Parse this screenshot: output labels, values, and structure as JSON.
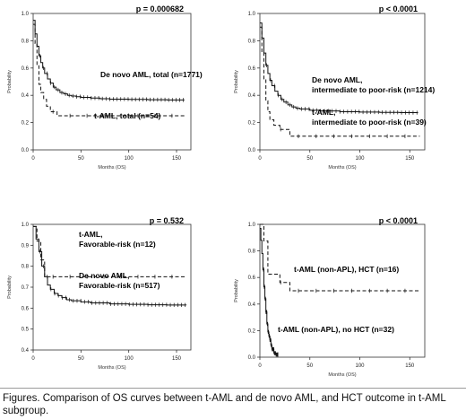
{
  "caption": "Figures. Comparison of OS curves between t-AML and de novo AML, and HCT outcome in t-AML subgroup.",
  "chart_data": [
    {
      "type": "line",
      "title": "",
      "p_value": "p = 0.000682",
      "xlabel": "Months (OS)",
      "ylabel": "Probability",
      "xlim": [
        0,
        165
      ],
      "ylim": [
        0,
        1.0
      ],
      "xticks": [
        "0",
        "50",
        "100",
        "150"
      ],
      "yticks": [
        "0.0",
        "0.2",
        "0.4",
        "0.6",
        "0.8",
        "1.0"
      ],
      "series": [
        {
          "style": "solid",
          "label_lines": [
            "De novo AML, total (n=1771)"
          ],
          "x": [
            0,
            2,
            4,
            6,
            8,
            10,
            12,
            15,
            18,
            21,
            24,
            28,
            32,
            36,
            40,
            45,
            50,
            60,
            70,
            80,
            100,
            120,
            140,
            158
          ],
          "y": [
            0.95,
            0.85,
            0.76,
            0.69,
            0.64,
            0.6,
            0.56,
            0.52,
            0.49,
            0.46,
            0.44,
            0.42,
            0.41,
            0.4,
            0.395,
            0.39,
            0.385,
            0.38,
            0.375,
            0.372,
            0.37,
            0.368,
            0.366,
            0.365
          ]
        },
        {
          "style": "dashed",
          "label_lines": [
            "t-AML, total (n=54)"
          ],
          "x": [
            0,
            2,
            4,
            6,
            8,
            11,
            14,
            18,
            25,
            160
          ],
          "y": [
            0.92,
            0.78,
            0.62,
            0.48,
            0.42,
            0.37,
            0.32,
            0.28,
            0.25,
            0.25
          ]
        }
      ]
    },
    {
      "type": "line",
      "title": "",
      "p_value": "p < 0.0001",
      "xlabel": "Months (OS)",
      "ylabel": "Probability",
      "xlim": [
        0,
        165
      ],
      "ylim": [
        0,
        1.0
      ],
      "xticks": [
        "0",
        "50",
        "100",
        "150"
      ],
      "yticks": [
        "0.0",
        "0.2",
        "0.4",
        "0.6",
        "0.8",
        "1.0"
      ],
      "series": [
        {
          "style": "solid",
          "label_lines": [
            "De novo AML,",
            "intermediate to poor-risk (n=1214)"
          ],
          "x": [
            0,
            2,
            4,
            6,
            8,
            10,
            12,
            15,
            18,
            21,
            24,
            28,
            32,
            36,
            40,
            50,
            60,
            80,
            100,
            120,
            140,
            158
          ],
          "y": [
            0.93,
            0.82,
            0.71,
            0.62,
            0.56,
            0.51,
            0.47,
            0.43,
            0.4,
            0.37,
            0.35,
            0.33,
            0.315,
            0.305,
            0.3,
            0.29,
            0.285,
            0.28,
            0.277,
            0.275,
            0.273,
            0.272
          ]
        },
        {
          "style": "dashed",
          "label_lines": [
            "t-AML,",
            "intermediate to poor-risk (n=39)"
          ],
          "x": [
            0,
            2,
            4,
            6,
            8,
            10,
            14,
            20,
            30,
            160
          ],
          "y": [
            0.9,
            0.72,
            0.52,
            0.36,
            0.28,
            0.22,
            0.18,
            0.15,
            0.1,
            0.1
          ]
        }
      ]
    },
    {
      "type": "line",
      "title": "",
      "p_value": "p = 0.532",
      "xlabel": "Months (OS)",
      "ylabel": "Probability",
      "xlim": [
        0,
        165
      ],
      "ylim": [
        0.4,
        1.0
      ],
      "xticks": [
        "0",
        "50",
        "100",
        "150"
      ],
      "yticks": [
        "0.4",
        "0.5",
        "0.6",
        "0.7",
        "0.8",
        "0.9",
        "1.0"
      ],
      "series": [
        {
          "style": "solid",
          "label_lines": [
            "De novo AML,",
            "Favorable-risk (n=517)"
          ],
          "x": [
            0,
            3,
            6,
            9,
            12,
            15,
            18,
            22,
            26,
            30,
            35,
            40,
            50,
            60,
            80,
            100,
            120,
            140,
            160
          ],
          "y": [
            0.99,
            0.93,
            0.87,
            0.8,
            0.75,
            0.71,
            0.69,
            0.67,
            0.66,
            0.65,
            0.64,
            0.635,
            0.63,
            0.625,
            0.62,
            0.618,
            0.616,
            0.615,
            0.614
          ]
        },
        {
          "style": "dashed",
          "label_lines": [
            "t-AML,",
            "Favorable-risk (n=12)"
          ],
          "x": [
            0,
            4,
            8,
            12,
            160
          ],
          "y": [
            0.99,
            0.92,
            0.83,
            0.75,
            0.75
          ]
        }
      ]
    },
    {
      "type": "line",
      "title": "",
      "p_value": "p < 0.0001",
      "xlabel": "Months (OS)",
      "ylabel": "Probability",
      "xlim": [
        0,
        165
      ],
      "ylim": [
        0,
        1.0
      ],
      "xticks": [
        "0",
        "50",
        "100",
        "150"
      ],
      "yticks": [
        "0.0",
        "0.2",
        "0.4",
        "0.6",
        "0.8",
        "1.0"
      ],
      "series": [
        {
          "style": "dashed",
          "label_lines": [
            "t-AML (non-APL), HCT (n=16)"
          ],
          "x": [
            0,
            4,
            8,
            20,
            30,
            160
          ],
          "y": [
            1.0,
            0.875,
            0.625,
            0.5625,
            0.5,
            0.5
          ]
        },
        {
          "style": "solid",
          "label_lines": [
            "t-AML (non-APL), no HCT (n=32)"
          ],
          "x": [
            0,
            1,
            2,
            3,
            4,
            5,
            6,
            7,
            8,
            9,
            10,
            11,
            12,
            14,
            16,
            18
          ],
          "y": [
            0.97,
            0.88,
            0.78,
            0.66,
            0.53,
            0.44,
            0.34,
            0.25,
            0.19,
            0.16,
            0.13,
            0.09,
            0.06,
            0.03,
            0.02,
            0.02
          ]
        }
      ]
    }
  ]
}
